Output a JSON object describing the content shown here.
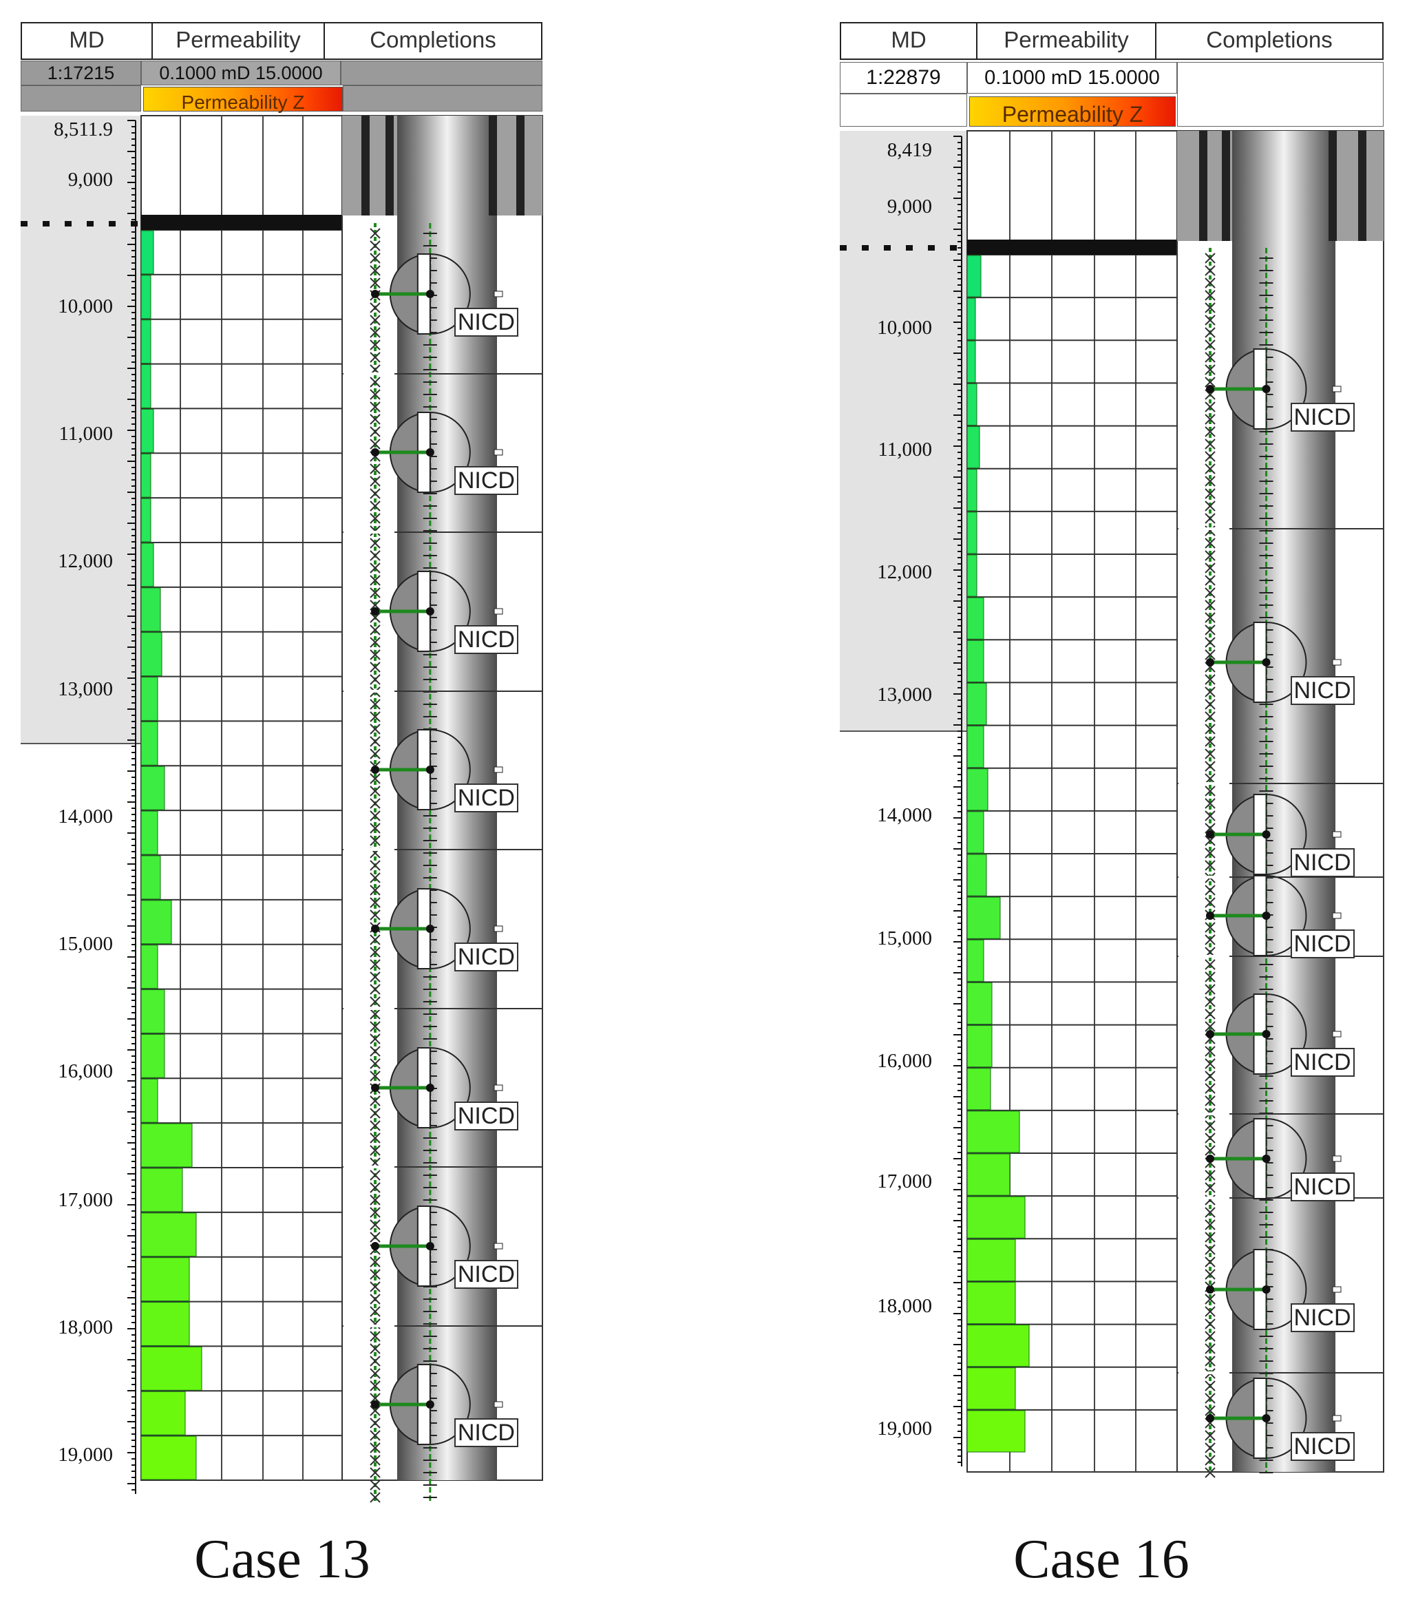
{
  "panels": [
    {
      "id": "case13",
      "header": {
        "md": "MD",
        "permeability": "Permeability",
        "completions": "Completions"
      },
      "scale": "1:17215",
      "perm_range": "0.1000 mD 15.0000",
      "perm_label": "Permeability Z",
      "md_labels": [
        "8,511.9",
        "9,000",
        "10,000",
        "11,000",
        "12,000",
        "13,000",
        "14,000",
        "15,000",
        "16,000",
        "17,000",
        "18,000",
        "19,000"
      ],
      "caption": "Case 13",
      "valves": [
        {
          "label": "NICD"
        },
        {
          "label": "NICD"
        },
        {
          "label": "NICD"
        },
        {
          "label": "NICD"
        },
        {
          "label": "NICD"
        },
        {
          "label": "NICD"
        },
        {
          "label": "NICD"
        },
        {
          "label": "NICD"
        }
      ]
    },
    {
      "id": "case16",
      "header": {
        "md": "MD",
        "permeability": "Permeability",
        "completions": "Completions"
      },
      "scale": "1:22879",
      "perm_range": "0.1000 mD 15.0000",
      "perm_label": "Permeability Z",
      "md_labels": [
        "8,419",
        "9,000",
        "10,000",
        "11,000",
        "12,000",
        "13,000",
        "14,000",
        "15,000",
        "16,000",
        "17,000",
        "18,000",
        "19,000"
      ],
      "caption": "Case 16",
      "valves": [
        {
          "label": "NICD"
        },
        {
          "label": "NICD"
        },
        {
          "label": "NICD"
        },
        {
          "label": "NICD"
        },
        {
          "label": "NICD"
        },
        {
          "label": "NICD"
        },
        {
          "label": "NICD"
        },
        {
          "label": "NICD"
        }
      ]
    }
  ]
}
